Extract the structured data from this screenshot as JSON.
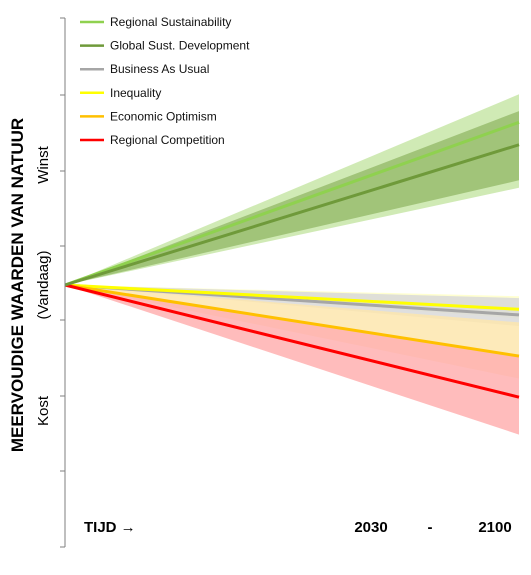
{
  "chart_data": {
    "type": "area",
    "title": "",
    "ylabel": "MEERVOUDIGE WAARDEN VAN NATUUR",
    "ylabel_sub": "(Vandaag)",
    "y_top_label": "Winst",
    "y_bottom_label": "Kost",
    "xlabel": "TIJD →",
    "x_tick_labels": [
      "2030",
      "-",
      "2100"
    ],
    "x": [
      "Vandaag",
      "2100"
    ],
    "ylim": [
      -10,
      10
    ],
    "grid": false,
    "legend_position": "top-left",
    "series": [
      {
        "name": "Regional Sustainability",
        "color": "#8fd14f",
        "band_color": "#c8e6a8",
        "values": [
          0,
          8.7
        ],
        "band": [
          [
            0,
            0
          ],
          [
            5.2,
            10.2
          ]
        ]
      },
      {
        "name": "Global Sust. Development",
        "color": "#6f9a3a",
        "band_color": "#99bd6e",
        "values": [
          0,
          7.5
        ],
        "band": [
          [
            0,
            0
          ],
          [
            5.6,
            9.3
          ]
        ]
      },
      {
        "name": "Business As Usual",
        "color": "#a6a6a6",
        "band_color": "#d9d9d9",
        "values": [
          0,
          -1.6
        ],
        "band": [
          [
            0,
            0
          ],
          [
            -2.2,
            -0.7
          ]
        ]
      },
      {
        "name": "Inequality",
        "color": "#ffff00",
        "band_color": "#ffffc8",
        "values": [
          0,
          -1.3
        ],
        "band": [
          [
            0,
            0
          ],
          [
            -1.8,
            -0.6
          ]
        ]
      },
      {
        "name": "Economic Optimism",
        "color": "#ffc000",
        "band_color": "#fde6ae",
        "values": [
          0,
          -3.8
        ],
        "band": [
          [
            0,
            0
          ],
          [
            -5.0,
            -2.0
          ]
        ]
      },
      {
        "name": "Regional Competition",
        "color": "#ff0000",
        "band_color": "#ffb0b0",
        "values": [
          0,
          -6.0
        ],
        "band": [
          [
            0,
            0
          ],
          [
            -8.0,
            -3.8
          ]
        ]
      }
    ]
  }
}
